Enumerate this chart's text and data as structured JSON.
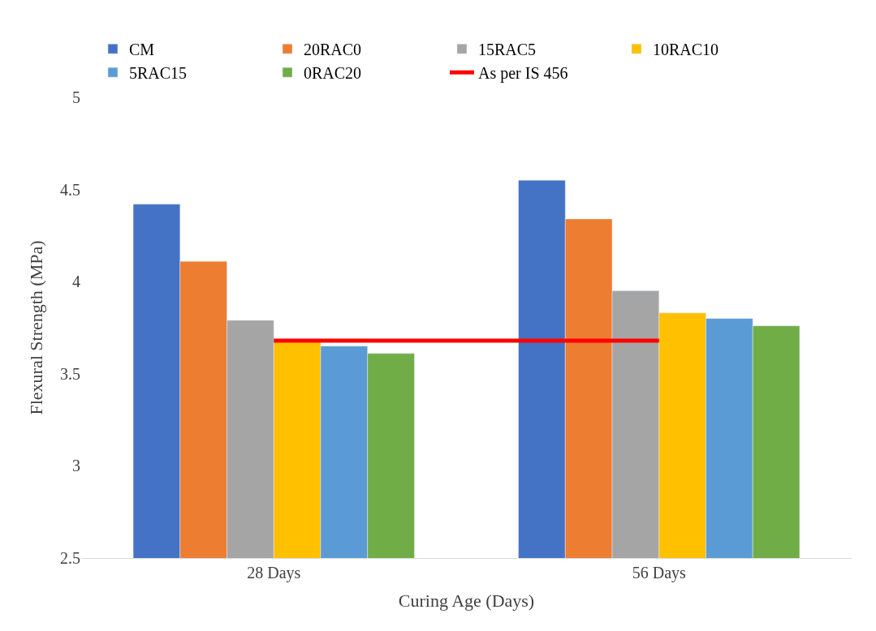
{
  "chart_data": {
    "type": "bar",
    "xlabel": "Curing Age (Days)",
    "ylabel": "Flexural Strength (MPa)",
    "categories": [
      "28 Days",
      "56 Days"
    ],
    "series": [
      {
        "name": "CM",
        "color": "#4472c4",
        "values": [
          4.42,
          4.55
        ]
      },
      {
        "name": "20RAC0",
        "color": "#ed7d31",
        "values": [
          4.11,
          4.34
        ]
      },
      {
        "name": "15RAC5",
        "color": "#a5a5a5",
        "values": [
          3.79,
          3.95
        ]
      },
      {
        "name": "10RAC10",
        "color": "#ffc000",
        "values": [
          3.68,
          3.83
        ]
      },
      {
        "name": "5RAC15",
        "color": "#5b9bd5",
        "values": [
          3.65,
          3.8
        ]
      },
      {
        "name": "0RAC20",
        "color": "#70ad47",
        "values": [
          3.61,
          3.76
        ]
      },
      {
        "name": "As per IS 456",
        "color": "#ff0000",
        "type": "line",
        "values": [
          3.68,
          3.68
        ]
      }
    ],
    "ylim": [
      2.5,
      5
    ],
    "yticks": [
      2.5,
      3,
      3.5,
      4,
      4.5,
      5
    ],
    "legend": "top",
    "marker": "none",
    "line_style": "solid"
  }
}
